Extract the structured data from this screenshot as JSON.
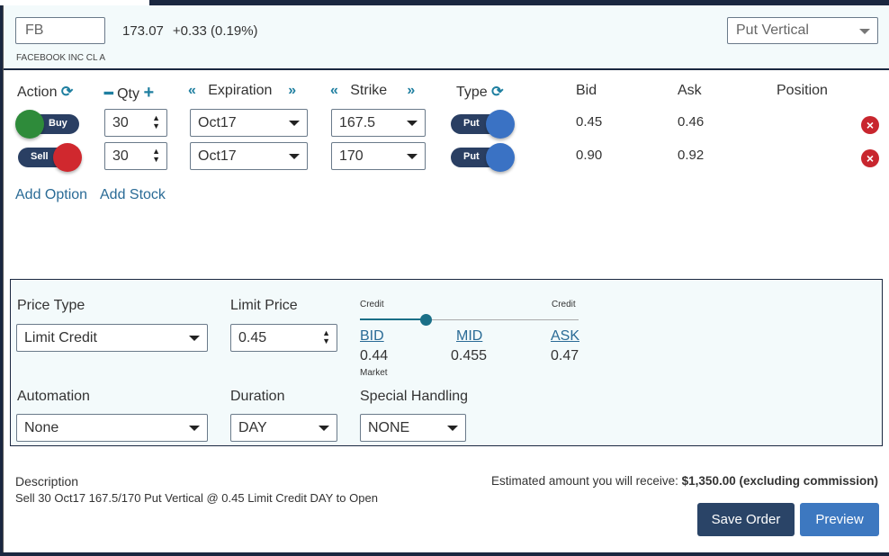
{
  "header": {
    "symbol": "FB",
    "price": "173.07",
    "change": "+0.33 (0.19%)",
    "company": "FACEBOOK INC CL A",
    "strategy": "Put Vertical"
  },
  "columns": {
    "action": "Action",
    "qty": "Qty",
    "expiration": "Expiration",
    "strike": "Strike",
    "type": "Type",
    "bid": "Bid",
    "ask": "Ask",
    "position": "Position"
  },
  "legs": [
    {
      "action": "Buy",
      "action_color": "#2e8b3a",
      "qty": "30",
      "expiration": "Oct17",
      "strike": "167.5",
      "type": "Put",
      "bid": "0.45",
      "ask": "0.46",
      "position": ""
    },
    {
      "action": "Sell",
      "action_color": "#d0282e",
      "qty": "30",
      "expiration": "Oct17",
      "strike": "170",
      "type": "Put",
      "bid": "0.90",
      "ask": "0.92",
      "position": ""
    }
  ],
  "links": {
    "add_option": "Add Option",
    "add_stock": "Add Stock"
  },
  "order": {
    "price_type_label": "Price Type",
    "price_type": "Limit Credit",
    "limit_price_label": "Limit Price",
    "limit_price": "0.45",
    "slider": {
      "left_label": "Credit",
      "right_label": "Credit",
      "level_percent": 30,
      "bid_label": "BID",
      "bid": "0.44",
      "market_label": "Market",
      "mid_label": "MID",
      "mid": "0.455",
      "ask_label": "ASK",
      "ask": "0.47"
    },
    "automation_label": "Automation",
    "automation": "None",
    "duration_label": "Duration",
    "duration": "DAY",
    "special_label": "Special Handling",
    "special": "NONE"
  },
  "footer": {
    "description_label": "Description",
    "description": "Sell 30 Oct17 167.5/170 Put Vertical @ 0.45 Limit Credit DAY to Open",
    "estimate_prefix": "Estimated amount you will receive:",
    "estimate_value": "$1,350.00 (excluding commission)",
    "save": "Save Order",
    "preview": "Preview"
  },
  "colors": {
    "navy": "#1a2740",
    "accent": "#1f7fa0",
    "link": "#2a6b96",
    "save": "#2a4467",
    "preview": "#3d78c0"
  }
}
